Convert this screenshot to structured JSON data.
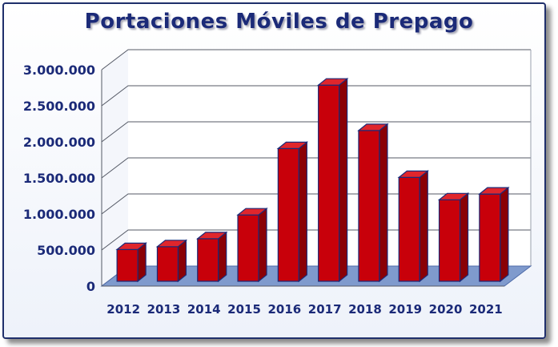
{
  "chart_data": {
    "type": "bar",
    "title": "Portaciones Móviles de Prepago",
    "categories": [
      "2012",
      "2013",
      "2014",
      "2015",
      "2016",
      "2017",
      "2018",
      "2019",
      "2020",
      "2021"
    ],
    "values": [
      440000,
      480000,
      590000,
      920000,
      1840000,
      2720000,
      2090000,
      1440000,
      1130000,
      1210000
    ],
    "yticks": [
      "0",
      "500.000",
      "1.000.000",
      "1.500.000",
      "2.000.000",
      "2.500.000",
      "3.000.000"
    ],
    "ylim": [
      0,
      3000000
    ],
    "grid": true,
    "bar_color": "#c8000a",
    "bar_outline": "#1b2a78"
  }
}
